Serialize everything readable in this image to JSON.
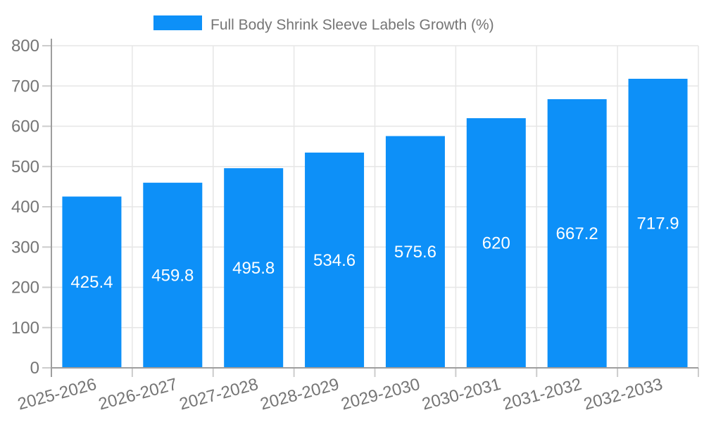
{
  "chart_data": {
    "type": "bar",
    "title": "Full Body Shrink Sleeve Labels Growth (%)",
    "categories": [
      "2025-2026",
      "2026-2027",
      "2027-2028",
      "2028-2029",
      "2029-2030",
      "2030-2031",
      "2031-2032",
      "2032-2033"
    ],
    "values": [
      425.4,
      459.8,
      495.8,
      534.6,
      575.6,
      620,
      667.2,
      717.9
    ],
    "value_labels": [
      "425.4",
      "459.8",
      "495.8",
      "534.6",
      "575.6",
      "620",
      "667.2",
      "717.9"
    ],
    "xlabel": "",
    "ylabel": "",
    "ylim": [
      0,
      800
    ],
    "yticks": [
      0,
      100,
      200,
      300,
      400,
      500,
      600,
      700,
      800
    ],
    "grid": true,
    "legend_position": "top",
    "x_label_rotation_deg": -15,
    "colors": {
      "bar": "#0d90f8",
      "axis_text": "#757575",
      "grid_line": "#e6e6e6",
      "tick_line": "#cccccc",
      "axis_line": "#9e9e9e",
      "value_text": "#ffffff",
      "background": "#ffffff"
    }
  }
}
